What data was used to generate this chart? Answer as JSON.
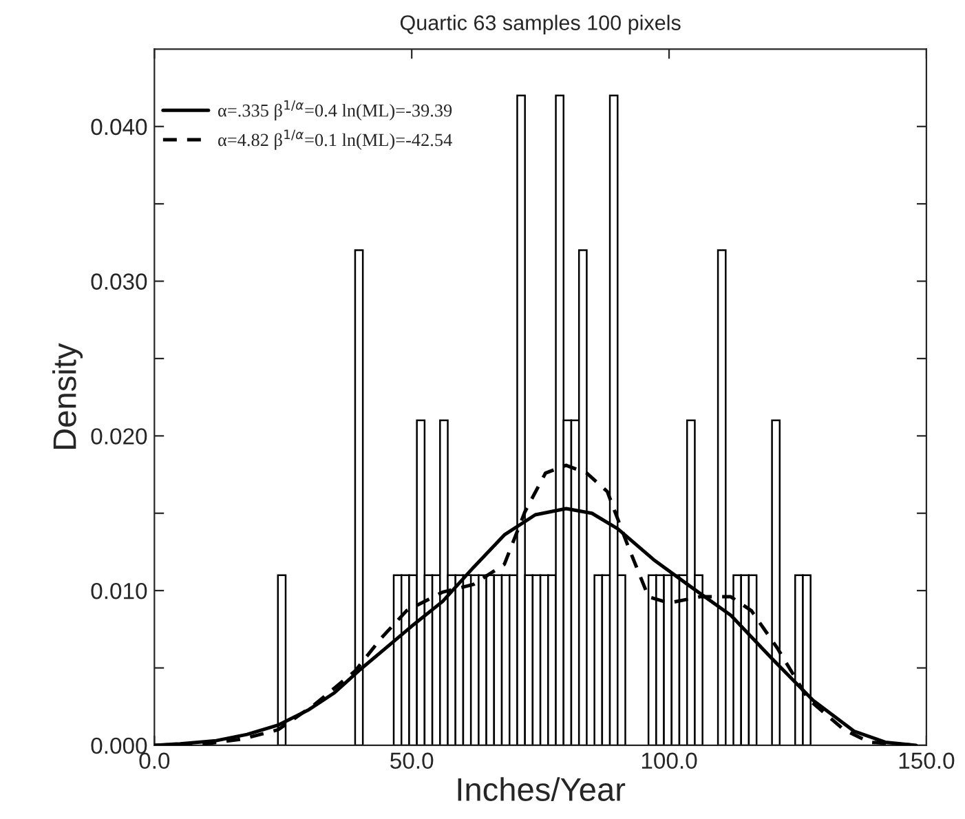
{
  "chart_data": {
    "type": "histogram",
    "title": "Quartic 63 samples 100 pixels",
    "xlabel": "Inches/Year",
    "ylabel": "Density",
    "bins": [
      0,
      1.5,
      3,
      4.5,
      6,
      7.5,
      9,
      10.5,
      12,
      13.5,
      15,
      16.5,
      18,
      19.5,
      21,
      22.5,
      24,
      25.5,
      27,
      28.5,
      30,
      31.5,
      33,
      34.5,
      36,
      37.5,
      39,
      40.5,
      42,
      43.5,
      45,
      46.5,
      48,
      49.5,
      51,
      52.5,
      54,
      55.5,
      57,
      58.5,
      60,
      61.5,
      63,
      64.5,
      66,
      67.5,
      69,
      70.5,
      72,
      73.5,
      75,
      76.5,
      78,
      79.5,
      81,
      82.5,
      84,
      85.5,
      87,
      88.5,
      90,
      91.5,
      93,
      94.5,
      96,
      97.5,
      99,
      100.5,
      102,
      103.5,
      105,
      106.5,
      108,
      109.5,
      111,
      112.5,
      114,
      115.5,
      117,
      118.5,
      120,
      121.5,
      123,
      124.5,
      126,
      127.5,
      129,
      130.5,
      132,
      133.5,
      135,
      136.5,
      138,
      139.5,
      141,
      142.5,
      144,
      145.5,
      147,
      148.5,
      150
    ],
    "values": [
      0,
      0,
      0,
      0,
      0,
      0,
      0,
      0,
      0,
      0,
      0,
      0,
      0,
      0,
      0,
      0,
      0.011,
      0,
      0,
      0,
      0,
      0,
      0,
      0,
      0,
      0,
      0.032,
      0,
      0,
      0,
      0,
      0.011,
      0.011,
      0.011,
      0.021,
      0.011,
      0.011,
      0.021,
      0.011,
      0.011,
      0.011,
      0.011,
      0.011,
      0.011,
      0.011,
      0.011,
      0.011,
      0.042,
      0.011,
      0.011,
      0.011,
      0.011,
      0.042,
      0.021,
      0.021,
      0.032,
      0,
      0.011,
      0.011,
      0.042,
      0.011,
      0,
      0,
      0,
      0.011,
      0.011,
      0.011,
      0.011,
      0.011,
      0.021,
      0.011,
      0,
      0,
      0.032,
      0,
      0.011,
      0.011,
      0.011,
      0,
      0,
      0.021,
      0,
      0,
      0.011,
      0.011,
      0,
      0,
      0,
      0,
      0,
      0,
      0,
      0,
      0,
      0,
      0,
      0,
      0,
      0,
      0
    ],
    "color": "#ffffff",
    "series": [
      {
        "type": "line",
        "name": "α=.335 β$^{1/α}$=0.4 ln(ML)=-39.39",
        "color": "#000000",
        "line_style": "solid",
        "x": [
          0,
          5,
          12,
          18,
          24,
          30,
          35,
          40,
          45,
          50,
          56,
          62,
          68,
          74,
          80,
          85,
          90,
          97,
          104,
          112,
          120,
          128,
          136,
          142,
          148
        ],
        "values": [
          0,
          0.0001,
          0.0003,
          0.0007,
          0.0013,
          0.0023,
          0.0034,
          0.0049,
          0.0063,
          0.0077,
          0.0093,
          0.0115,
          0.0136,
          0.0149,
          0.0153,
          0.015,
          0.014,
          0.012,
          0.0103,
          0.0084,
          0.0056,
          0.0029,
          0.0009,
          0.0002,
          0
        ]
      },
      {
        "type": "line",
        "name": "α=4.82 β$^{1/α}$=0.1 ln(ML)=-42.54",
        "color": "#000000",
        "line_style": "dashed",
        "x": [
          0,
          10,
          17,
          24,
          31,
          39,
          44,
          49,
          56,
          62,
          68,
          72,
          76,
          80,
          84,
          88,
          92,
          96,
          100,
          106,
          112,
          116,
          121,
          127,
          134,
          139,
          148
        ],
        "values": [
          0,
          0.0001,
          0.0004,
          0.001,
          0.0026,
          0.0048,
          0.0069,
          0.0087,
          0.0099,
          0.0104,
          0.0117,
          0.0151,
          0.0176,
          0.0181,
          0.0176,
          0.0164,
          0.0129,
          0.0096,
          0.0092,
          0.0096,
          0.0096,
          0.0087,
          0.0063,
          0.003,
          0.001,
          0.0002,
          0
        ]
      }
    ],
    "xlim": [
      0,
      150
    ],
    "xticks": [
      {
        "value": 0,
        "label": "0.0"
      },
      {
        "value": 50,
        "label": "50.0"
      },
      {
        "value": 100,
        "label": "100.0"
      },
      {
        "value": 150,
        "label": "150.0"
      }
    ],
    "ylim": [
      0,
      0.045
    ],
    "yticks": [
      {
        "value": 0,
        "label": "0.000"
      },
      {
        "value": 0.005,
        "label": null
      },
      {
        "value": 0.01,
        "label": "0.010"
      },
      {
        "value": 0.015,
        "label": null
      },
      {
        "value": 0.02,
        "label": "0.020"
      },
      {
        "value": 0.025,
        "label": null
      },
      {
        "value": 0.03,
        "label": "0.030"
      },
      {
        "value": 0.035,
        "label": null
      },
      {
        "value": 0.04,
        "label": "0.040"
      }
    ],
    "legend": "top left",
    "grid": false
  }
}
